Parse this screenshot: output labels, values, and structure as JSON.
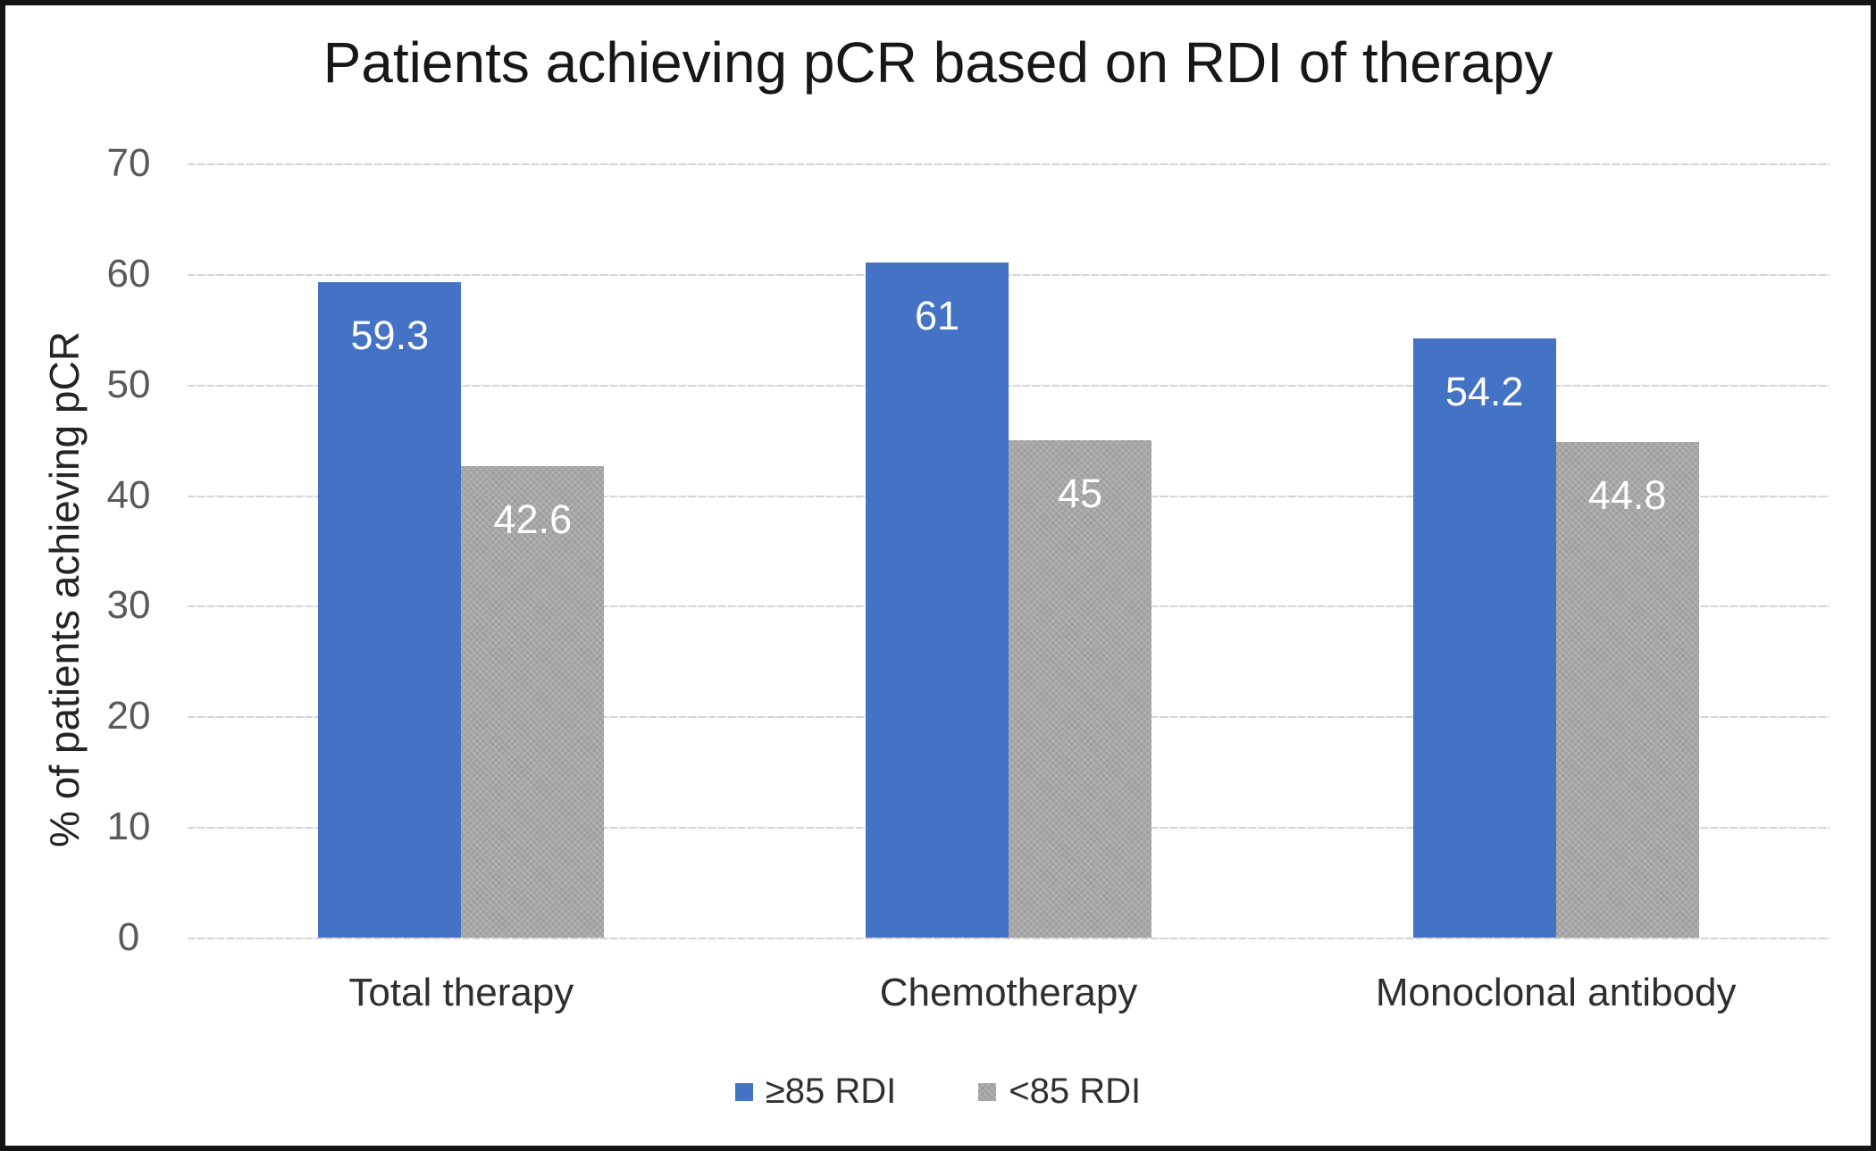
{
  "chart_data": {
    "type": "bar",
    "title": "Patients achieving pCR based on RDI of therapy",
    "ylabel": "% of patients achieving pCR",
    "xlabel": "",
    "categories": [
      "Total therapy",
      "Chemotherapy",
      "Monoclonal antibody"
    ],
    "series": [
      {
        "name": "≥85 RDI",
        "color": "#4472C4",
        "values": [
          59.3,
          61,
          54.2
        ]
      },
      {
        "name": "<85 RDI",
        "color": "#A6A6A6",
        "values": [
          42.6,
          45,
          44.8
        ]
      }
    ],
    "ylim": [
      0,
      70
    ],
    "ytick_interval": 10,
    "yticks": [
      70,
      60,
      50,
      40,
      30,
      20,
      10,
      0
    ],
    "grid": "horizontal",
    "legend_position": "bottom",
    "data_labels": "inside-top-white"
  },
  "colors": {
    "bar_blue": "#4472C4",
    "bar_gray": "#A6A6A6",
    "gridline": "#D9D9D9",
    "tick_text": "#595959",
    "category_text": "#2E2E2E",
    "title_text": "#171717",
    "data_label_text": "#FFFFFF",
    "background": "#FFFFFF",
    "frame_border": "#141414"
  }
}
